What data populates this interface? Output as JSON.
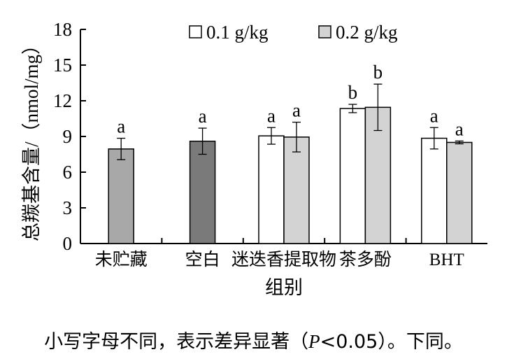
{
  "chart_data": {
    "type": "bar",
    "categories": [
      "未贮藏",
      "空白",
      "迷迭香提取物",
      "茶多酚",
      "BHT"
    ],
    "series": [
      {
        "name": "0.1 g/kg",
        "color": "#ffffff",
        "values": [
          null,
          null,
          9.05,
          11.35,
          8.85
        ],
        "errors": [
          null,
          null,
          0.7,
          0.35,
          0.9
        ],
        "letters": [
          null,
          null,
          "a",
          "b",
          "a"
        ]
      },
      {
        "name": "0.2 g/kg",
        "color": "#d3d3d3",
        "values": [
          null,
          null,
          8.95,
          11.45,
          8.5
        ],
        "errors": [
          null,
          null,
          1.25,
          1.95,
          0.12
        ],
        "letters": [
          null,
          null,
          "a",
          "b",
          "a"
        ]
      }
    ],
    "single_bars": [
      {
        "category": "未贮藏",
        "value": 7.95,
        "error": 0.9,
        "letter": "a",
        "color": "#a8a8a8"
      },
      {
        "category": "空白",
        "value": 8.6,
        "error": 1.1,
        "letter": "a",
        "color": "#7a7a7a"
      }
    ],
    "xlabel": "组别",
    "ylabel": "总羰基含量/（nmol/mg）",
    "ylim": [
      0,
      18
    ],
    "yticks": [
      0,
      3,
      6,
      9,
      12,
      15,
      18
    ],
    "legend_placement": "top",
    "grid": false
  },
  "caption": {
    "before": "小写字母不同，表示差异显著（",
    "p_symbol": "P",
    "after": "<0.05）。下同。"
  }
}
